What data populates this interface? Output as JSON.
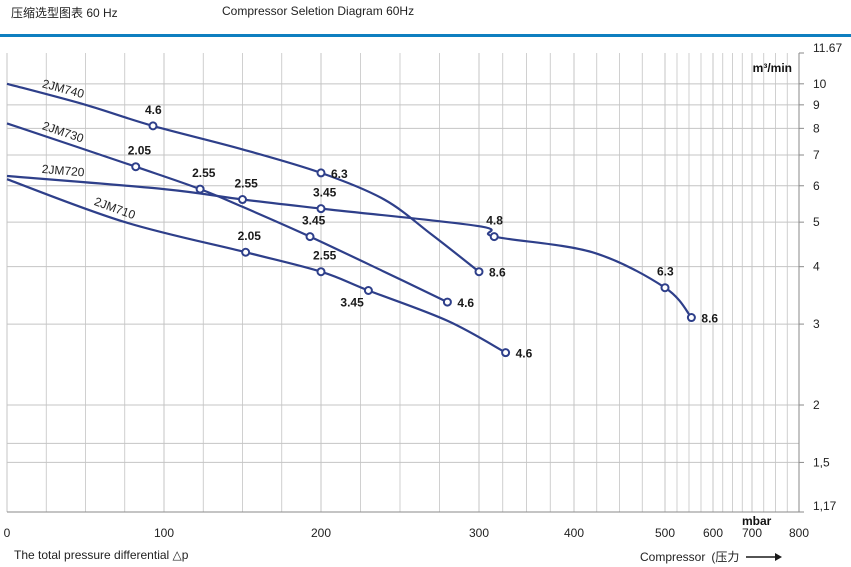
{
  "header": {
    "left_label": "压缩选型图表 60 Hz",
    "title": "Compressor Seletion Diagram 60Hz"
  },
  "colors": {
    "accent_rule": "#0f7fc0",
    "curve": "#2e3f8a",
    "grid": "#c4c4c4",
    "axis": "#8a8a8a"
  },
  "chart_data": {
    "type": "line",
    "title": "Compressor Seletion Diagram 60Hz",
    "xlabel": "mbar",
    "ylabel": "m³/min",
    "x_scale": "piecewise",
    "y_scale": "log",
    "xlim": [
      0,
      800
    ],
    "ylim": [
      1.17,
      11.67
    ],
    "x_ticks": [
      {
        "value": 0,
        "label": "0"
      },
      {
        "value": 100,
        "label": "100"
      },
      {
        "value": 200,
        "label": "200"
      },
      {
        "value": 300,
        "label": "300"
      },
      {
        "value": 400,
        "label": "400"
      },
      {
        "value": 500,
        "label": "500"
      },
      {
        "value": 600,
        "label": "600"
      },
      {
        "value": 700,
        "label": "700"
      },
      {
        "value": 800,
        "label": "800"
      }
    ],
    "y_ticks": [
      {
        "value": 11.67,
        "label": "11.67"
      },
      {
        "value": 10,
        "label": "10"
      },
      {
        "value": 9,
        "label": "9"
      },
      {
        "value": 8,
        "label": "8"
      },
      {
        "value": 7,
        "label": "7"
      },
      {
        "value": 6,
        "label": "6"
      },
      {
        "value": 5,
        "label": "5"
      },
      {
        "value": 4,
        "label": "4"
      },
      {
        "value": 3,
        "label": "3"
      },
      {
        "value": 2,
        "label": "2"
      },
      {
        "value": 1.5,
        "label": "1,5"
      },
      {
        "value": 1.17,
        "label": "1,17"
      }
    ],
    "y_unit_label": "m³/min",
    "x_unit_label": "mbar",
    "x_grid_minor": [
      25,
      50,
      75,
      125,
      150,
      175,
      225,
      250,
      275,
      325,
      350,
      375,
      425,
      450,
      475,
      525,
      550,
      575,
      625,
      650,
      675,
      725,
      750,
      775
    ],
    "y_grid_extra": [
      1.65
    ],
    "series": [
      {
        "name": "2JM740",
        "points": [
          [
            0,
            10.0
          ],
          [
            50,
            9.0
          ],
          [
            93,
            8.1
          ],
          [
            150,
            7.2
          ],
          [
            200,
            6.4
          ],
          [
            240,
            5.6
          ],
          [
            270,
            4.7
          ],
          [
            300,
            3.9
          ]
        ],
        "markers": [
          {
            "x": 93,
            "y": 8.1,
            "label": "4.6",
            "label_pos": "above"
          },
          {
            "x": 200,
            "y": 6.4,
            "label": "6.3",
            "label_pos": "right"
          },
          {
            "x": 300,
            "y": 3.9,
            "label": "8.6",
            "label_pos": "right"
          }
        ]
      },
      {
        "name": "2JM730",
        "points": [
          [
            0,
            8.2
          ],
          [
            82,
            6.6
          ],
          [
            123,
            5.9
          ],
          [
            150,
            5.4
          ],
          [
            193,
            4.65
          ],
          [
            240,
            3.9
          ],
          [
            280,
            3.35
          ]
        ],
        "markers": [
          {
            "x": 82,
            "y": 6.6,
            "label": "2.05",
            "label_pos": "above"
          },
          {
            "x": 123,
            "y": 5.9,
            "label": "2.55",
            "label_pos": "above"
          },
          {
            "x": 193,
            "y": 4.65,
            "label": "3.45",
            "label_pos": "above"
          },
          {
            "x": 280,
            "y": 3.35,
            "label": "4.6",
            "label_pos": "right"
          }
        ]
      },
      {
        "name": "2JM720",
        "points": [
          [
            0,
            6.3
          ],
          [
            100,
            5.9
          ],
          [
            150,
            5.6
          ],
          [
            200,
            5.35
          ],
          [
            300,
            4.9
          ],
          [
            316,
            4.65
          ],
          [
            420,
            4.3
          ],
          [
            500,
            3.6
          ],
          [
            555,
            3.1
          ]
        ],
        "markers": [
          {
            "x": 150,
            "y": 5.6,
            "label": "2.55",
            "label_pos": "above"
          },
          {
            "x": 200,
            "y": 5.35,
            "label": "3.45",
            "label_pos": "above"
          },
          {
            "x": 316,
            "y": 4.65,
            "label": "4.8",
            "label_pos": "above"
          },
          {
            "x": 500,
            "y": 3.6,
            "label": "6.3",
            "label_pos": "above"
          },
          {
            "x": 555,
            "y": 3.1,
            "label": "8.6",
            "label_pos": "right"
          }
        ]
      },
      {
        "name": "2JM710",
        "points": [
          [
            0,
            6.2
          ],
          [
            75,
            5.0
          ],
          [
            152,
            4.3
          ],
          [
            200,
            3.9
          ],
          [
            230,
            3.55
          ],
          [
            280,
            3.05
          ],
          [
            328,
            2.6
          ]
        ],
        "markers": [
          {
            "x": 152,
            "y": 4.3,
            "label": "2.05",
            "label_pos": "above"
          },
          {
            "x": 200,
            "y": 3.9,
            "label": "2.55",
            "label_pos": "above"
          },
          {
            "x": 230,
            "y": 3.55,
            "label": "3.45",
            "label_pos": "below"
          },
          {
            "x": 328,
            "y": 2.6,
            "label": "4.6",
            "label_pos": "right"
          }
        ]
      }
    ]
  },
  "footer": {
    "x_axis_caption": "The total pressure differential △p",
    "compressor_label": "Compressor",
    "pressure_label": "(压力"
  }
}
